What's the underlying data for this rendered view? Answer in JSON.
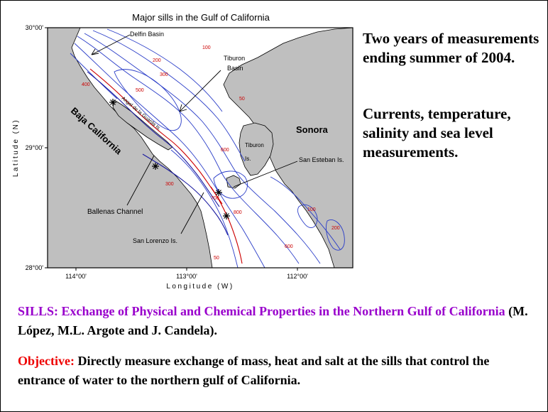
{
  "map": {
    "title": "Major sills in the Gulf of California",
    "ylabel": "Latitude (N)",
    "xlabel": "Longitude (W)",
    "lat_ticks": [
      "30°00'",
      "29°00'",
      "28°00'"
    ],
    "lon_ticks": [
      "114°00'",
      "113°00'",
      "112°00'"
    ],
    "places": {
      "baja": "Baja California",
      "sonora": "Sonora",
      "delfin": "Delfin Basin",
      "tiburon_basin_1": "Tiburon",
      "tiburon_basin_2": "Basin",
      "tiburon_is_1": "Tiburon",
      "tiburon_is_2": "Is.",
      "angel": "Angel de la Guarda Is.",
      "san_esteban": "San Esteban Is.",
      "ballenas": "Ballenas Channel",
      "san_lorenzo": "San Lorenzo Is."
    },
    "depth_labels": [
      "100",
      "200",
      "300",
      "400",
      "500",
      "600",
      "700",
      "800",
      "50"
    ],
    "colors": {
      "land": "#bfbfbf",
      "water": "#ffffff",
      "contour_shallow": "#2a3dc8",
      "contour_deep": "#cc0000"
    }
  },
  "right_text": {
    "p1": "Two years of measurements ending summer of 2004.",
    "p2": "Currents, temperature, salinity and sea level measurements."
  },
  "bottom_text": {
    "sills_title": "SILLS: Exchange of Physical and Chemical Properties in the Northern Gulf of California",
    "authors": " (M. López, M.L. Argote and J. Candela).",
    "objective_label": "Objective:",
    "objective_text": " Directly measure exchange of mass, heat and salt at the sills that control the entrance of water to the northern gulf of California."
  }
}
